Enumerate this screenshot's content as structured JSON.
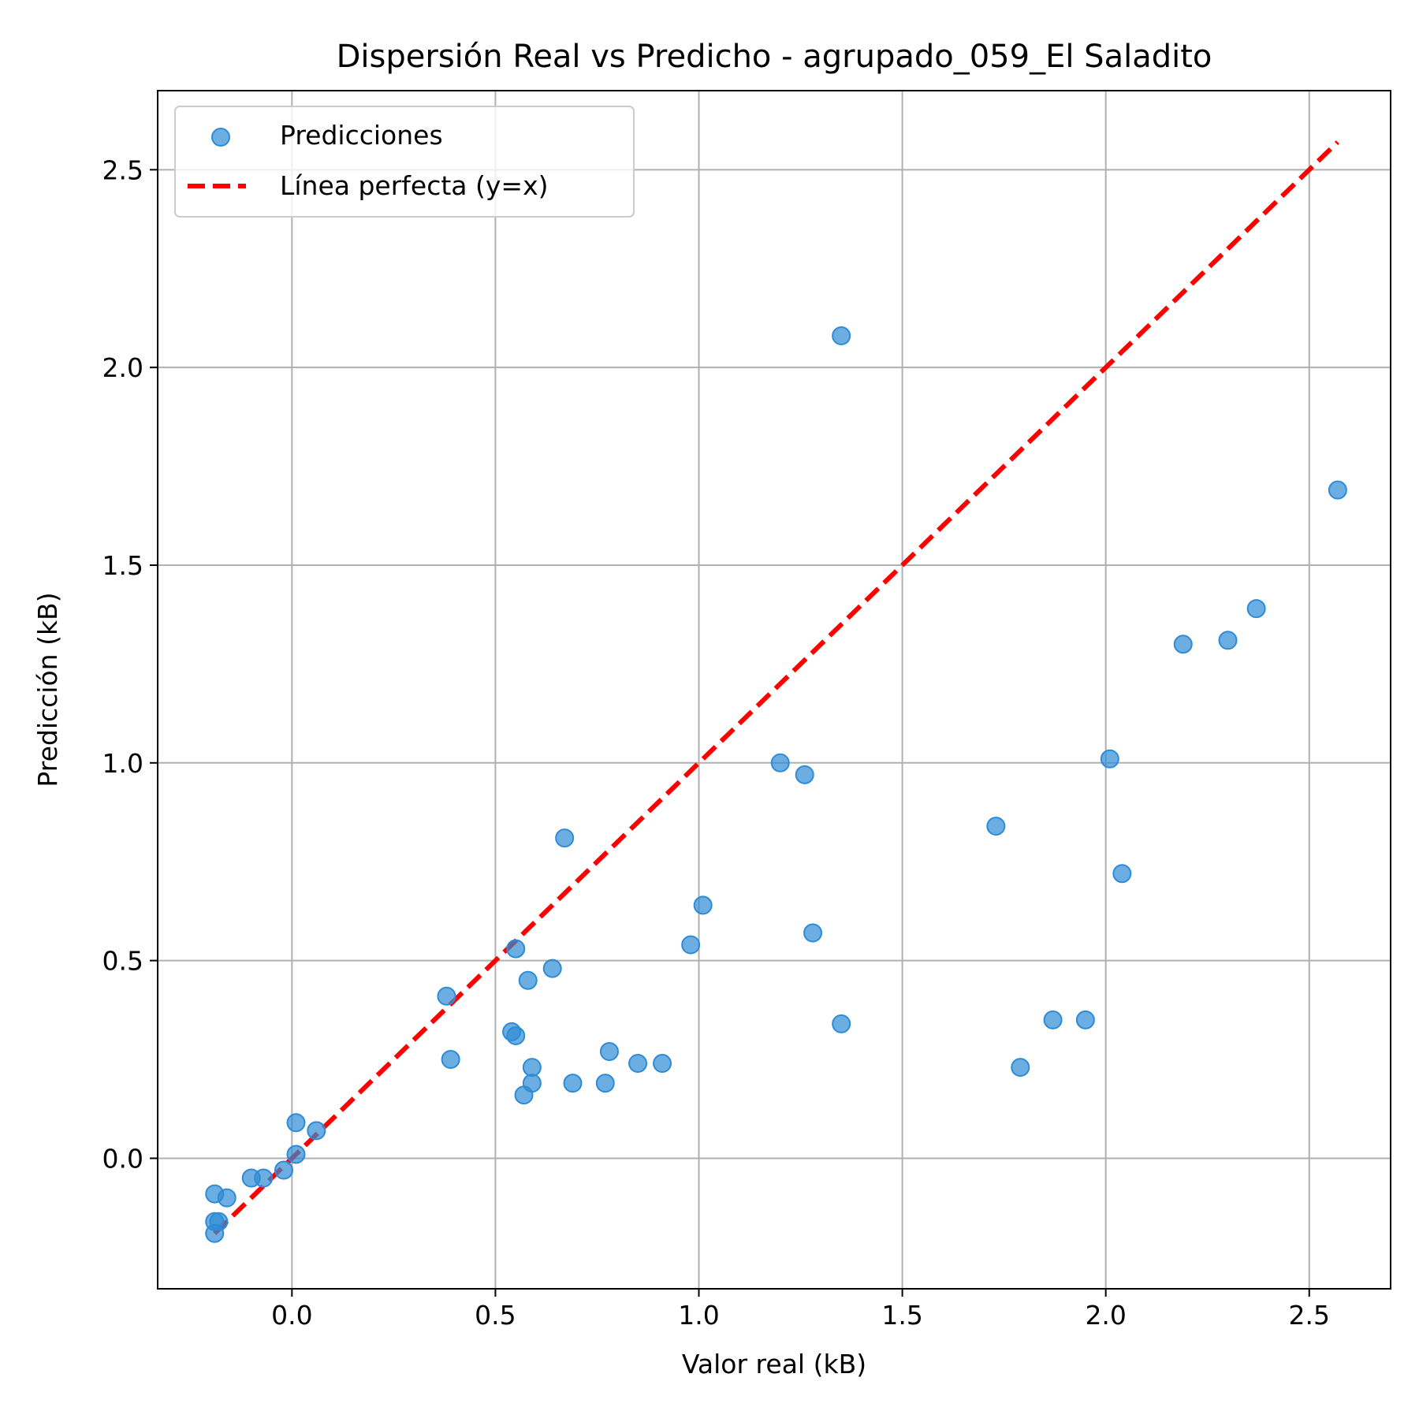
{
  "chart_data": {
    "type": "scatter",
    "title": "Dispersión Real vs Predicho - agrupado_059_El Saladito",
    "xlabel": "Valor real (kB)",
    "ylabel": "Predicción (kB)",
    "xlim": [
      -0.33,
      2.7
    ],
    "ylim": [
      -0.33,
      2.7
    ],
    "xticks": [
      0.0,
      0.5,
      1.0,
      1.5,
      2.0,
      2.5
    ],
    "yticks": [
      0.0,
      0.5,
      1.0,
      1.5,
      2.0,
      2.5
    ],
    "xtick_labels": [
      "0.0",
      "0.5",
      "1.0",
      "1.5",
      "2.0",
      "2.5"
    ],
    "ytick_labels": [
      "0.0",
      "0.5",
      "1.0",
      "1.5",
      "2.0",
      "2.5"
    ],
    "grid": true,
    "legend_position": "upper-left",
    "series": [
      {
        "name": "Predicciones",
        "kind": "scatter",
        "color": "#2E8BD6",
        "points": [
          [
            -0.19,
            -0.19
          ],
          [
            -0.19,
            -0.16
          ],
          [
            -0.18,
            -0.16
          ],
          [
            -0.19,
            -0.09
          ],
          [
            -0.16,
            -0.1
          ],
          [
            -0.1,
            -0.05
          ],
          [
            -0.07,
            -0.05
          ],
          [
            -0.02,
            -0.03
          ],
          [
            0.01,
            0.01
          ],
          [
            0.01,
            0.09
          ],
          [
            0.06,
            0.07
          ],
          [
            0.38,
            0.41
          ],
          [
            0.39,
            0.25
          ],
          [
            0.54,
            0.32
          ],
          [
            0.55,
            0.31
          ],
          [
            0.55,
            0.53
          ],
          [
            0.58,
            0.45
          ],
          [
            0.57,
            0.16
          ],
          [
            0.59,
            0.19
          ],
          [
            0.59,
            0.23
          ],
          [
            0.64,
            0.48
          ],
          [
            0.67,
            0.81
          ],
          [
            0.69,
            0.19
          ],
          [
            0.77,
            0.19
          ],
          [
            0.78,
            0.27
          ],
          [
            0.85,
            0.24
          ],
          [
            0.91,
            0.24
          ],
          [
            0.98,
            0.54
          ],
          [
            1.01,
            0.64
          ],
          [
            1.2,
            1.0
          ],
          [
            1.26,
            0.97
          ],
          [
            1.28,
            0.57
          ],
          [
            1.35,
            0.34
          ],
          [
            1.35,
            2.08
          ],
          [
            1.73,
            0.84
          ],
          [
            1.79,
            0.23
          ],
          [
            1.87,
            0.35
          ],
          [
            1.95,
            0.35
          ],
          [
            2.01,
            1.01
          ],
          [
            2.04,
            0.72
          ],
          [
            2.19,
            1.3
          ],
          [
            2.3,
            1.31
          ],
          [
            2.37,
            1.39
          ],
          [
            2.57,
            1.69
          ]
        ]
      },
      {
        "name": "Línea perfecta (y=x)",
        "kind": "line",
        "style": "dashed",
        "color": "#FF0000",
        "points": [
          [
            -0.19,
            -0.19
          ],
          [
            2.57,
            2.57
          ]
        ]
      }
    ]
  }
}
